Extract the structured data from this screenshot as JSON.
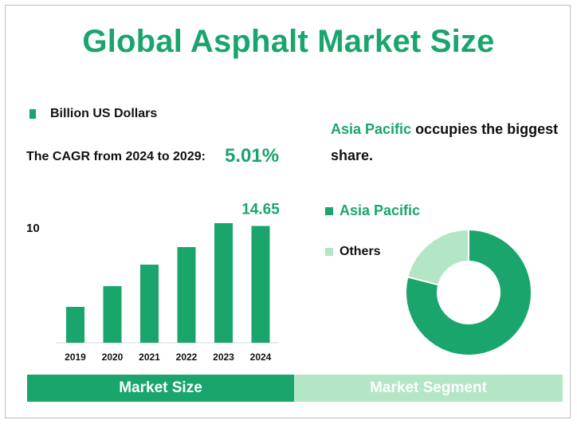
{
  "title": "Global Asphalt Market Size",
  "legend_left": {
    "label": "Billion US Dollars"
  },
  "cagr": {
    "label": "The CAGR from 2024 to 2029:",
    "value": "5.01%"
  },
  "share": {
    "highlight": "Asia Pacific",
    "rest": " occupies the biggest share."
  },
  "legend_right": {
    "item1": "Asia Pacific",
    "item2": "Others"
  },
  "tabs": {
    "left": "Market Size",
    "right": "Market Segment"
  },
  "colors": {
    "primary": "#19a56c",
    "light": "#b2e6c4"
  },
  "chart_data": [
    {
      "type": "bar",
      "categories": [
        "2019",
        "2020",
        "2021",
        "2022",
        "2023",
        "2024"
      ],
      "values": [
        4.5,
        7.1,
        9.8,
        12.0,
        15.0,
        14.65
      ],
      "ylim": [
        0,
        16
      ],
      "y_tick_labels": [
        {
          "value": 10,
          "label": "10"
        }
      ],
      "data_labels": [
        {
          "category": "2024",
          "label": "14.65"
        }
      ],
      "series": [
        {
          "name": "Billion US Dollars",
          "values": [
            4.5,
            7.1,
            9.8,
            12.0,
            15.0,
            14.65
          ]
        }
      ]
    },
    {
      "type": "pie",
      "donut": true,
      "labels": [
        "Asia Pacific",
        "Others"
      ],
      "values": [
        79,
        21
      ]
    }
  ]
}
